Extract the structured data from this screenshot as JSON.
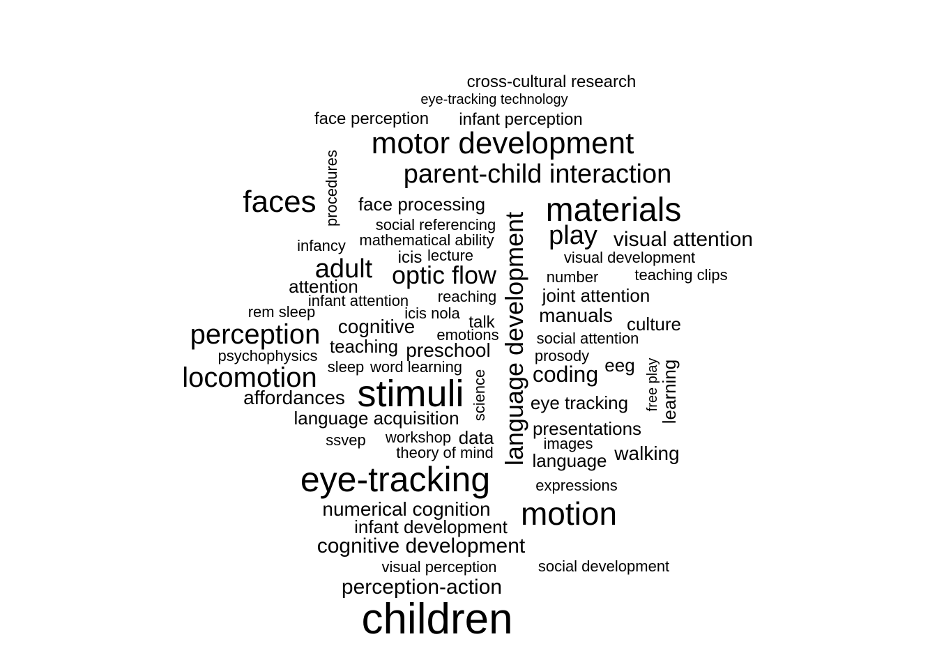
{
  "word_cloud": {
    "text_color": "#000000",
    "background": "#ffffff",
    "words": [
      {
        "text": "cross-cultural research",
        "orientation": "horizontal"
      },
      {
        "text": "eye-tracking technology",
        "orientation": "horizontal"
      },
      {
        "text": "face perception",
        "orientation": "horizontal"
      },
      {
        "text": "infant perception",
        "orientation": "horizontal"
      },
      {
        "text": "motor development",
        "orientation": "horizontal"
      },
      {
        "text": "procedures",
        "orientation": "vertical"
      },
      {
        "text": "parent-child interaction",
        "orientation": "horizontal"
      },
      {
        "text": "faces",
        "orientation": "horizontal"
      },
      {
        "text": "face processing",
        "orientation": "horizontal"
      },
      {
        "text": "materials",
        "orientation": "horizontal"
      },
      {
        "text": "social referencing",
        "orientation": "horizontal"
      },
      {
        "text": "play",
        "orientation": "horizontal"
      },
      {
        "text": "visual attention",
        "orientation": "horizontal"
      },
      {
        "text": "mathematical ability",
        "orientation": "horizontal"
      },
      {
        "text": "infancy",
        "orientation": "horizontal"
      },
      {
        "text": "icis",
        "orientation": "horizontal"
      },
      {
        "text": "lecture",
        "orientation": "horizontal"
      },
      {
        "text": "visual development",
        "orientation": "horizontal"
      },
      {
        "text": "adult",
        "orientation": "horizontal"
      },
      {
        "text": "optic flow",
        "orientation": "horizontal"
      },
      {
        "text": "teaching clips",
        "orientation": "horizontal"
      },
      {
        "text": "number",
        "orientation": "horizontal"
      },
      {
        "text": "attention",
        "orientation": "horizontal"
      },
      {
        "text": "reaching",
        "orientation": "horizontal"
      },
      {
        "text": "joint attention",
        "orientation": "horizontal"
      },
      {
        "text": "infant attention",
        "orientation": "horizontal"
      },
      {
        "text": "rem sleep",
        "orientation": "horizontal"
      },
      {
        "text": "icis nola",
        "orientation": "horizontal"
      },
      {
        "text": "manuals",
        "orientation": "horizontal"
      },
      {
        "text": "talk",
        "orientation": "horizontal"
      },
      {
        "text": "culture",
        "orientation": "horizontal"
      },
      {
        "text": "cognitive",
        "orientation": "horizontal"
      },
      {
        "text": "perception",
        "orientation": "horizontal"
      },
      {
        "text": "emotions",
        "orientation": "horizontal"
      },
      {
        "text": "social attention",
        "orientation": "horizontal"
      },
      {
        "text": "teaching",
        "orientation": "horizontal"
      },
      {
        "text": "preschool",
        "orientation": "horizontal"
      },
      {
        "text": "psychophysics",
        "orientation": "horizontal"
      },
      {
        "text": "prosody",
        "orientation": "horizontal"
      },
      {
        "text": "free play",
        "orientation": "vertical"
      },
      {
        "text": "eeg",
        "orientation": "horizontal"
      },
      {
        "text": "sleep",
        "orientation": "horizontal"
      },
      {
        "text": "word learning",
        "orientation": "horizontal"
      },
      {
        "text": "learning",
        "orientation": "vertical"
      },
      {
        "text": "language development",
        "orientation": "vertical"
      },
      {
        "text": "coding",
        "orientation": "horizontal"
      },
      {
        "text": "locomotion",
        "orientation": "horizontal"
      },
      {
        "text": "science",
        "orientation": "vertical"
      },
      {
        "text": "stimuli",
        "orientation": "horizontal"
      },
      {
        "text": "affordances",
        "orientation": "horizontal"
      },
      {
        "text": "eye tracking",
        "orientation": "horizontal"
      },
      {
        "text": "language acquisition",
        "orientation": "horizontal"
      },
      {
        "text": "presentations",
        "orientation": "horizontal"
      },
      {
        "text": "workshop",
        "orientation": "horizontal"
      },
      {
        "text": "data",
        "orientation": "horizontal"
      },
      {
        "text": "ssvep",
        "orientation": "horizontal"
      },
      {
        "text": "images",
        "orientation": "horizontal"
      },
      {
        "text": "theory of mind",
        "orientation": "horizontal"
      },
      {
        "text": "walking",
        "orientation": "horizontal"
      },
      {
        "text": "language",
        "orientation": "horizontal"
      },
      {
        "text": "eye-tracking",
        "orientation": "horizontal"
      },
      {
        "text": "expressions",
        "orientation": "horizontal"
      },
      {
        "text": "numerical cognition",
        "orientation": "horizontal"
      },
      {
        "text": "motion",
        "orientation": "horizontal"
      },
      {
        "text": "infant development",
        "orientation": "horizontal"
      },
      {
        "text": "cognitive development",
        "orientation": "horizontal"
      },
      {
        "text": "visual perception",
        "orientation": "horizontal"
      },
      {
        "text": "social development",
        "orientation": "horizontal"
      },
      {
        "text": "perception-action",
        "orientation": "horizontal"
      },
      {
        "text": "children",
        "orientation": "horizontal"
      }
    ]
  }
}
